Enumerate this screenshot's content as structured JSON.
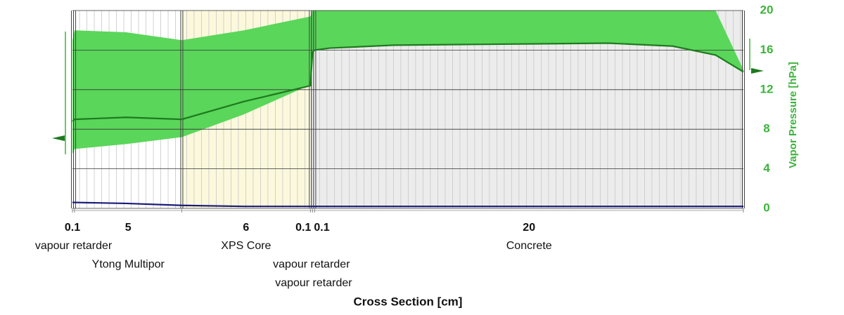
{
  "chart_data": {
    "type": "line",
    "xlabel": "Cross Section [cm]",
    "ylabel": "Vapor Pressure [hPa]",
    "xlim": [
      0,
      31.3
    ],
    "ylim": [
      0,
      20
    ],
    "yticks": [
      0,
      4,
      8,
      12,
      16,
      20
    ],
    "grid": true,
    "layers": [
      {
        "thickness": 0.1,
        "name": "vapour retarder",
        "color": "#ffffff"
      },
      {
        "thickness": 5,
        "name": "Ytong Multipor",
        "color": "#ffffff"
      },
      {
        "thickness": 6,
        "name": "XPS Core",
        "color": "#fbf8dc"
      },
      {
        "thickness": 0.1,
        "name": "vapour retarder",
        "color": "#ffffff"
      },
      {
        "thickness": 0.1,
        "name": "vapour retarder",
        "color": "#ffffff"
      },
      {
        "thickness": 20,
        "name": "Concrete",
        "color": "#ececec"
      }
    ],
    "x": [
      0,
      0.1,
      2.5,
      5.1,
      8,
      11.1,
      11.2,
      11.3,
      12,
      15,
      20,
      25,
      28,
      30,
      31.3
    ],
    "series": [
      {
        "color": "#5ad65a",
        "values": [
          17,
          18,
          17.8,
          17,
          18,
          19.4,
          20,
          20,
          20,
          20,
          20,
          20,
          20,
          20,
          14
        ]
      },
      {
        "color": "#5ad65a",
        "values": [
          5.5,
          6,
          6.5,
          7.2,
          9.5,
          12.5,
          16,
          16,
          16.2,
          16.5,
          16.6,
          16.7,
          16.4,
          15.5,
          13.8
        ]
      },
      {
        "color": "#1e7a1e",
        "values": [
          8.8,
          9,
          9.2,
          9,
          10.8,
          12.4,
          15.8,
          16,
          16.2,
          16.5,
          16.6,
          16.7,
          16.4,
          15.5,
          13.8
        ]
      },
      {
        "color": "#1a1a7a",
        "values": [
          0.6,
          0.6,
          0.5,
          0.3,
          0.2,
          0.2,
          0.2,
          0.2,
          0.2,
          0.2,
          0.2,
          0.2,
          0.2,
          0.2,
          0.2
        ]
      }
    ]
  }
}
